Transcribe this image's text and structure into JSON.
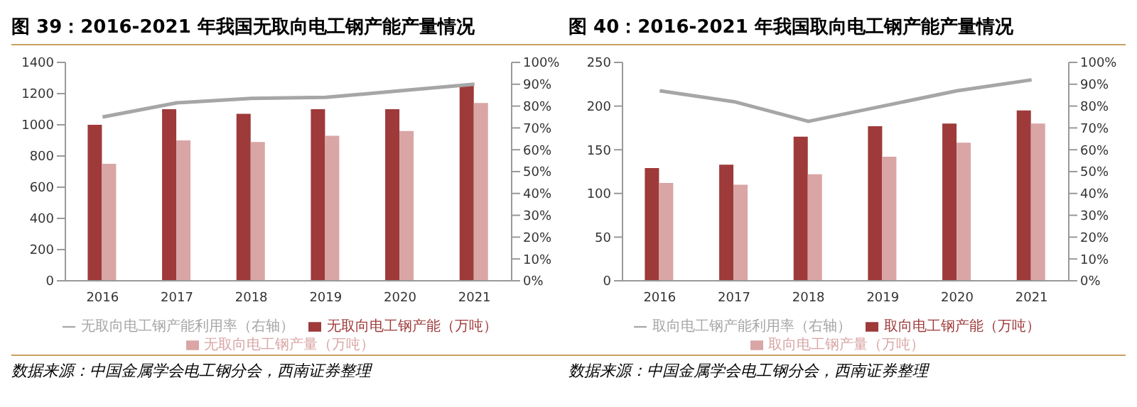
{
  "chart_data": [
    {
      "type": "bar",
      "title": "图 39：2016-2021 年我国无取向电工钢产能产量情况",
      "categories": [
        "2016",
        "2017",
        "2018",
        "2019",
        "2020",
        "2021"
      ],
      "series": [
        {
          "name": "无取向电工钢产能（万吨）",
          "color": "#9e3a3a",
          "values": [
            1000,
            1100,
            1070,
            1100,
            1100,
            1260
          ]
        },
        {
          "name": "无取向电工钢产量（万吨）",
          "color": "#d9a5a5",
          "values": [
            750,
            900,
            890,
            930,
            960,
            1140
          ]
        },
        {
          "name": "无取向电工钢产能利用率（右轴）",
          "type": "line",
          "axis": "y2",
          "color": "#a6a6a6",
          "values": [
            75,
            81.5,
            83.5,
            84,
            87,
            90
          ]
        }
      ],
      "ylim": [
        0,
        1400
      ],
      "yticks": [
        0,
        200,
        400,
        600,
        800,
        1000,
        1200,
        1400
      ],
      "y2lim": [
        0,
        100
      ],
      "y2ticks": [
        {
          "value": 0,
          "label": "0%"
        },
        {
          "value": 10,
          "label": "10%"
        },
        {
          "value": 20,
          "label": "20%"
        },
        {
          "value": 30,
          "label": "30%"
        },
        {
          "value": 40,
          "label": "40%"
        },
        {
          "value": 50,
          "label": "50%"
        },
        {
          "value": 60,
          "label": "60%"
        },
        {
          "value": 70,
          "label": "70%"
        },
        {
          "value": 80,
          "label": "80%"
        },
        {
          "value": 90,
          "label": "90%"
        },
        {
          "value": 100,
          "label": "100%"
        }
      ],
      "legend": "bottom",
      "marker": "none",
      "annotations": [
        "数据来源：中国金属学会电工钢分会，西南证券整理"
      ]
    },
    {
      "type": "bar",
      "title": "图 40：2016-2021 年我国取向电工钢产能产量情况",
      "categories": [
        "2016",
        "2017",
        "2018",
        "2019",
        "2020",
        "2021"
      ],
      "series": [
        {
          "name": "取向电工钢产能（万吨）",
          "color": "#9e3a3a",
          "values": [
            129,
            133,
            165,
            177,
            180,
            195
          ]
        },
        {
          "name": "取向电工钢产量（万吨）",
          "color": "#d9a5a5",
          "values": [
            112,
            110,
            122,
            142,
            158,
            180
          ]
        },
        {
          "name": "取向电工钢产能利用率（右轴）",
          "type": "line",
          "axis": "y2",
          "color": "#a6a6a6",
          "values": [
            87,
            82,
            73,
            80,
            87,
            92
          ]
        }
      ],
      "ylim": [
        0,
        250
      ],
      "yticks": [
        0,
        50,
        100,
        150,
        200,
        250
      ],
      "y2lim": [
        0,
        100
      ],
      "y2ticks": [
        {
          "value": 0,
          "label": "0%"
        },
        {
          "value": 10,
          "label": "10%"
        },
        {
          "value": 20,
          "label": "20%"
        },
        {
          "value": 30,
          "label": "30%"
        },
        {
          "value": 40,
          "label": "40%"
        },
        {
          "value": 50,
          "label": "50%"
        },
        {
          "value": 60,
          "label": "60%"
        },
        {
          "value": 70,
          "label": "70%"
        },
        {
          "value": 80,
          "label": "80%"
        },
        {
          "value": 90,
          "label": "90%"
        },
        {
          "value": 100,
          "label": "100%"
        }
      ],
      "legend": "bottom",
      "marker": "none",
      "annotations": [
        "数据来源：中国金属学会电工钢分会，西南证券整理"
      ]
    }
  ]
}
